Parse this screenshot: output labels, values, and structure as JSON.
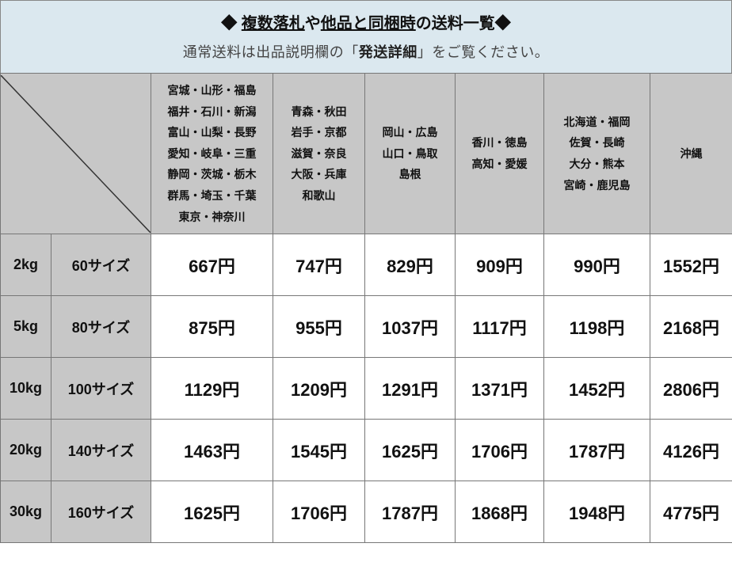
{
  "header": {
    "diamond_left": "◆",
    "diamond_right": "◆",
    "title_pre": " ",
    "title_u1": "複数落札",
    "title_mid": "や",
    "title_u2": "他品と同梱時",
    "title_post": "の送料一覧",
    "sub_pre": "通常送料は出品説明欄の「",
    "sub_bold": "発送詳細",
    "sub_post": "」をご覧ください。"
  },
  "regions": [
    "宮城・山形・福島\n福井・石川・新潟\n富山・山梨・長野\n愛知・岐阜・三重\n静岡・茨城・栃木\n群馬・埼玉・千葉\n東京・神奈川",
    "青森・秋田\n岩手・京都\n滋賀・奈良\n大阪・兵庫\n和歌山",
    "岡山・広島\n山口・鳥取\n島根",
    "香川・徳島\n高知・愛媛",
    "北海道・福岡\n佐賀・長崎\n大分・熊本\n宮崎・鹿児島",
    "沖縄"
  ],
  "rows": [
    {
      "weight": "2kg",
      "size": "60サイズ",
      "prices": [
        "667円",
        "747円",
        "829円",
        "909円",
        "990円",
        "1552円"
      ]
    },
    {
      "weight": "5kg",
      "size": "80サイズ",
      "prices": [
        "875円",
        "955円",
        "1037円",
        "1117円",
        "1198円",
        "2168円"
      ]
    },
    {
      "weight": "10kg",
      "size": "100サイズ",
      "prices": [
        "1129円",
        "1209円",
        "1291円",
        "1371円",
        "1452円",
        "2806円"
      ]
    },
    {
      "weight": "20kg",
      "size": "140サイズ",
      "prices": [
        "1463円",
        "1545円",
        "1625円",
        "1706円",
        "1787円",
        "4126円"
      ]
    },
    {
      "weight": "30kg",
      "size": "160サイズ",
      "prices": [
        "1625円",
        "1706円",
        "1787円",
        "1868円",
        "1948円",
        "4775円"
      ]
    }
  ],
  "style": {
    "header_bg": "#dbe8ef",
    "col_header_bg": "#c7c7c7",
    "border_color": "#777777",
    "text_color": "#111111",
    "price_bg": "#ffffff",
    "title_fontsize": 20,
    "region_fontsize": 14,
    "rowhead_fontsize": 18,
    "price_fontsize": 22
  }
}
